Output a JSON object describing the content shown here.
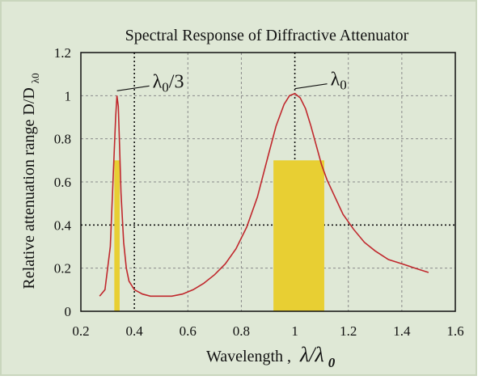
{
  "chart_data": {
    "type": "line",
    "title": "Spectral Response of Diffractive Attenuator",
    "xlabel_prefix": "Wavelength ,",
    "xlabel_math": "λ/λ",
    "xlabel_sub": "0",
    "ylabel": "Relative attenuation range D/D",
    "ylabel_sub": "λ0",
    "xlim": [
      0.2,
      1.6
    ],
    "ylim": [
      0,
      1.2
    ],
    "xticks": [
      "0.2",
      "0.4",
      "0.6",
      "0.8",
      "1",
      "1.2",
      "1.4",
      "1.6"
    ],
    "yticks": [
      "0",
      "0.2",
      "0.4",
      "0.6",
      "0.8",
      "1",
      "1.2"
    ],
    "grid": true,
    "series": [
      {
        "color": "#c0282d",
        "x": [
          0.27,
          0.29,
          0.31,
          0.32,
          0.33,
          0.335,
          0.34,
          0.345,
          0.35,
          0.36,
          0.37,
          0.38,
          0.4,
          0.43,
          0.46,
          0.5,
          0.54,
          0.58,
          0.62,
          0.66,
          0.7,
          0.74,
          0.78,
          0.82,
          0.86,
          0.9,
          0.93,
          0.96,
          0.98,
          1.0,
          1.02,
          1.04,
          1.06,
          1.08,
          1.1,
          1.12,
          1.15,
          1.18,
          1.22,
          1.26,
          1.3,
          1.35,
          1.4,
          1.45,
          1.5
        ],
        "y": [
          0.07,
          0.1,
          0.3,
          0.6,
          0.9,
          1.0,
          0.95,
          0.75,
          0.55,
          0.32,
          0.2,
          0.14,
          0.1,
          0.08,
          0.07,
          0.07,
          0.07,
          0.08,
          0.1,
          0.13,
          0.17,
          0.22,
          0.29,
          0.39,
          0.53,
          0.72,
          0.86,
          0.96,
          1.0,
          1.01,
          0.99,
          0.94,
          0.86,
          0.77,
          0.68,
          0.61,
          0.53,
          0.45,
          0.38,
          0.32,
          0.28,
          0.24,
          0.22,
          0.2,
          0.18
        ]
      }
    ],
    "bars": [
      {
        "x0": 0.325,
        "x1": 0.345,
        "y": 0.7,
        "color": "#e8cf33"
      },
      {
        "x0": 0.92,
        "x1": 1.11,
        "y": 0.7,
        "color": "#e8cf33"
      }
    ],
    "annotations": [
      {
        "text": "λ0/3",
        "x": 0.335,
        "y": 1.0
      },
      {
        "text": "λ0",
        "x": 1.0,
        "y": 1.01
      }
    ],
    "emphasized_gridlines": {
      "x": [
        0.4,
        1.0
      ],
      "y": [
        0.4
      ]
    }
  }
}
